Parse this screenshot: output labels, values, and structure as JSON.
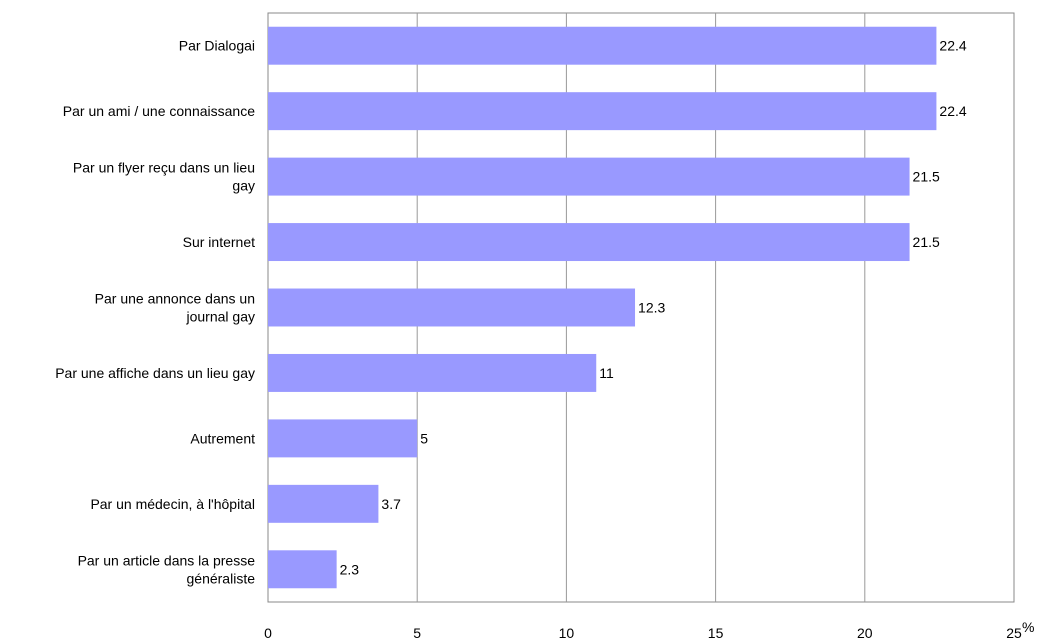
{
  "chart_data": {
    "type": "bar",
    "orientation": "horizontal",
    "title": "",
    "xlabel": "",
    "ylabel": "",
    "x_unit": "%",
    "xlim": [
      0,
      25
    ],
    "x_ticks": [
      0,
      5,
      10,
      15,
      20,
      25
    ],
    "grid": true,
    "bar_color": "#9999ff",
    "categories": [
      [
        "Par Dialogai"
      ],
      [
        "Par un ami / une connaissance"
      ],
      [
        "Par un flyer reçu dans un lieu",
        "gay"
      ],
      [
        "Sur internet"
      ],
      [
        "Par une annonce dans un",
        "journal gay"
      ],
      [
        "Par une affiche dans un lieu gay"
      ],
      [
        "Autrement"
      ],
      [
        "Par un médecin, à l'hôpital"
      ],
      [
        "Par un article dans la presse",
        "généraliste"
      ]
    ],
    "values": [
      22.4,
      22.4,
      21.5,
      21.5,
      12.3,
      11,
      5,
      3.7,
      2.3
    ],
    "value_labels": [
      "22.4",
      "22.4",
      "21.5",
      "21.5",
      "12.3",
      "11",
      "5",
      "3.7",
      "2.3"
    ]
  }
}
